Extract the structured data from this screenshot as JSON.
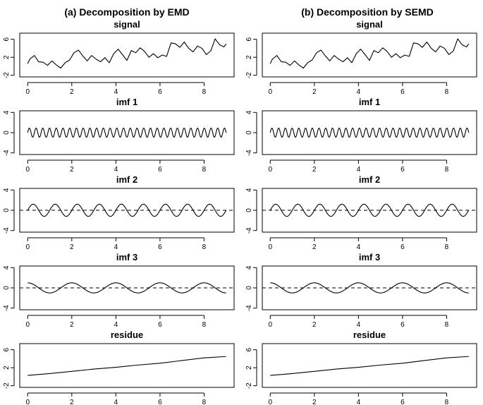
{
  "columns": [
    {
      "title": "(a) Decomposition by EMD"
    },
    {
      "title": "(b) Decomposition by SEMD"
    }
  ],
  "chart_data": [
    {
      "type": "line",
      "column": 0,
      "title": "signal",
      "xlim": [
        0,
        9
      ],
      "xticks": [
        0,
        2,
        4,
        6,
        8
      ],
      "ylim": [
        -2,
        7
      ],
      "yticks": [
        -2,
        2,
        6
      ],
      "ytick_labels": [
        "-2",
        "2",
        "6"
      ],
      "series": [
        {
          "x": [
            0,
            0.1,
            0.3,
            0.5,
            0.7,
            0.9,
            1.1,
            1.3,
            1.5,
            1.7,
            1.9,
            2.1,
            2.3,
            2.5,
            2.7,
            2.9,
            3.1,
            3.3,
            3.5,
            3.7,
            3.9,
            4.1,
            4.3,
            4.5,
            4.7,
            4.9,
            5.1,
            5.3,
            5.5,
            5.7,
            5.9,
            6.1,
            6.3,
            6.5,
            6.7,
            6.9,
            7.1,
            7.3,
            7.5,
            7.7,
            7.9,
            8.1,
            8.3,
            8.5,
            8.7,
            8.9,
            9.0
          ],
          "y": [
            0.6,
            1.6,
            2.4,
            1.0,
            0.9,
            0.2,
            1.2,
            0.3,
            -0.4,
            0.8,
            1.4,
            3.0,
            3.6,
            2.3,
            1.2,
            2.4,
            1.6,
            1.0,
            1.9,
            0.8,
            2.8,
            3.8,
            2.6,
            1.3,
            3.5,
            3.0,
            4.1,
            3.3,
            2.0,
            2.8,
            1.9,
            2.5,
            2.2,
            5.2,
            5.0,
            4.2,
            5.4,
            4.0,
            3.2,
            4.5,
            4.0,
            2.6,
            3.4,
            6.1,
            4.8,
            4.3,
            5.0
          ]
        }
      ]
    },
    {
      "type": "line",
      "column": 0,
      "title": "imf 1",
      "xlim": [
        0,
        9
      ],
      "xticks": [
        0,
        2,
        4,
        6,
        8
      ],
      "ylim": [
        -4,
        4
      ],
      "yticks": [
        -4,
        0,
        4
      ],
      "ytick_labels": [
        "-4",
        "0",
        "4"
      ],
      "zero_line": false,
      "function": "sine",
      "amplitude": 0.9,
      "cycles": 29.5,
      "phase": 0
    },
    {
      "type": "line",
      "column": 0,
      "title": "imf 2",
      "xlim": [
        0,
        9
      ],
      "xticks": [
        0,
        2,
        4,
        6,
        8
      ],
      "ylim": [
        -4,
        4
      ],
      "yticks": [
        -4,
        0,
        4
      ],
      "ytick_labels": [
        "-4",
        "0",
        "4"
      ],
      "zero_line": true,
      "function": "sine",
      "amplitude": 1.2,
      "cycles": 9,
      "phase": 0
    },
    {
      "type": "line",
      "column": 0,
      "title": "imf 3",
      "xlim": [
        0,
        9
      ],
      "xticks": [
        0,
        2,
        4,
        6,
        8
      ],
      "ylim": [
        -4,
        4
      ],
      "yticks": [
        -4,
        0,
        4
      ],
      "ytick_labels": [
        "-4",
        "0",
        "4"
      ],
      "zero_line": true,
      "function": "cosine",
      "amplitude": 1.0,
      "cycles": 4.5,
      "phase": 0
    },
    {
      "type": "line",
      "column": 0,
      "title": "residue",
      "xlim": [
        0,
        9
      ],
      "xticks": [
        0,
        2,
        4,
        6,
        8
      ],
      "ylim": [
        -2,
        7
      ],
      "yticks": [
        -2,
        2,
        6
      ],
      "ytick_labels": [
        "-2",
        "2",
        "6"
      ],
      "series": [
        {
          "x": [
            0,
            1,
            2,
            3,
            4,
            5,
            6,
            7,
            8,
            9
          ],
          "y": [
            0.3,
            0.7,
            1.2,
            1.7,
            2.1,
            2.6,
            3.0,
            3.6,
            4.2,
            4.5
          ]
        }
      ]
    },
    {
      "type": "line",
      "column": 1,
      "title": "signal",
      "xlim": [
        0,
        9
      ],
      "xticks": [
        0,
        2,
        4,
        6,
        8
      ],
      "ylim": [
        -2,
        7
      ],
      "yticks": [
        -2,
        2,
        6
      ],
      "ytick_labels": [
        "-2",
        "2",
        "6"
      ],
      "series": [
        {
          "x": [
            0,
            0.1,
            0.3,
            0.5,
            0.7,
            0.9,
            1.1,
            1.3,
            1.5,
            1.7,
            1.9,
            2.1,
            2.3,
            2.5,
            2.7,
            2.9,
            3.1,
            3.3,
            3.5,
            3.7,
            3.9,
            4.1,
            4.3,
            4.5,
            4.7,
            4.9,
            5.1,
            5.3,
            5.5,
            5.7,
            5.9,
            6.1,
            6.3,
            6.5,
            6.7,
            6.9,
            7.1,
            7.3,
            7.5,
            7.7,
            7.9,
            8.1,
            8.3,
            8.5,
            8.7,
            8.9,
            9.0
          ],
          "y": [
            0.6,
            1.6,
            2.4,
            1.0,
            0.9,
            0.2,
            1.2,
            0.3,
            -0.4,
            0.8,
            1.4,
            3.0,
            3.6,
            2.3,
            1.2,
            2.4,
            1.6,
            1.0,
            1.9,
            0.8,
            2.8,
            3.8,
            2.6,
            1.3,
            3.5,
            3.0,
            4.1,
            3.3,
            2.0,
            2.8,
            1.9,
            2.5,
            2.2,
            5.2,
            5.0,
            4.2,
            5.4,
            4.0,
            3.2,
            4.5,
            4.0,
            2.6,
            3.4,
            6.1,
            4.8,
            4.3,
            5.0
          ]
        }
      ]
    },
    {
      "type": "line",
      "column": 1,
      "title": "imf 1",
      "xlim": [
        0,
        9
      ],
      "xticks": [
        0,
        2,
        4,
        6,
        8
      ],
      "ylim": [
        -4,
        4
      ],
      "yticks": [
        -4,
        0,
        4
      ],
      "ytick_labels": [
        "-4",
        "0",
        "4"
      ],
      "zero_line": false,
      "function": "sine",
      "amplitude": 0.9,
      "cycles": 29.5,
      "phase": 0
    },
    {
      "type": "line",
      "column": 1,
      "title": "imf 2",
      "xlim": [
        0,
        9
      ],
      "xticks": [
        0,
        2,
        4,
        6,
        8
      ],
      "ylim": [
        -4,
        4
      ],
      "yticks": [
        -4,
        0,
        4
      ],
      "ytick_labels": [
        "-4",
        "0",
        "4"
      ],
      "zero_line": true,
      "function": "sine",
      "amplitude": 1.2,
      "cycles": 9,
      "phase": 0
    },
    {
      "type": "line",
      "column": 1,
      "title": "imf 3",
      "xlim": [
        0,
        9
      ],
      "xticks": [
        0,
        2,
        4,
        6,
        8
      ],
      "ylim": [
        -4,
        4
      ],
      "yticks": [
        -4,
        0,
        4
      ],
      "ytick_labels": [
        "-4",
        "0",
        "4"
      ],
      "zero_line": true,
      "function": "cosine",
      "amplitude": 1.0,
      "cycles": 4.5,
      "phase": 0
    },
    {
      "type": "line",
      "column": 1,
      "title": "residue",
      "xlim": [
        0,
        9
      ],
      "xticks": [
        0,
        2,
        4,
        6,
        8
      ],
      "ylim": [
        -2,
        7
      ],
      "yticks": [
        -2,
        2,
        6
      ],
      "ytick_labels": [
        "-2",
        "2",
        "6"
      ],
      "series": [
        {
          "x": [
            0,
            1,
            2,
            3,
            4,
            5,
            6,
            7,
            8,
            9
          ],
          "y": [
            0.3,
            0.7,
            1.2,
            1.7,
            2.1,
            2.6,
            3.0,
            3.6,
            4.2,
            4.5
          ]
        }
      ]
    }
  ]
}
